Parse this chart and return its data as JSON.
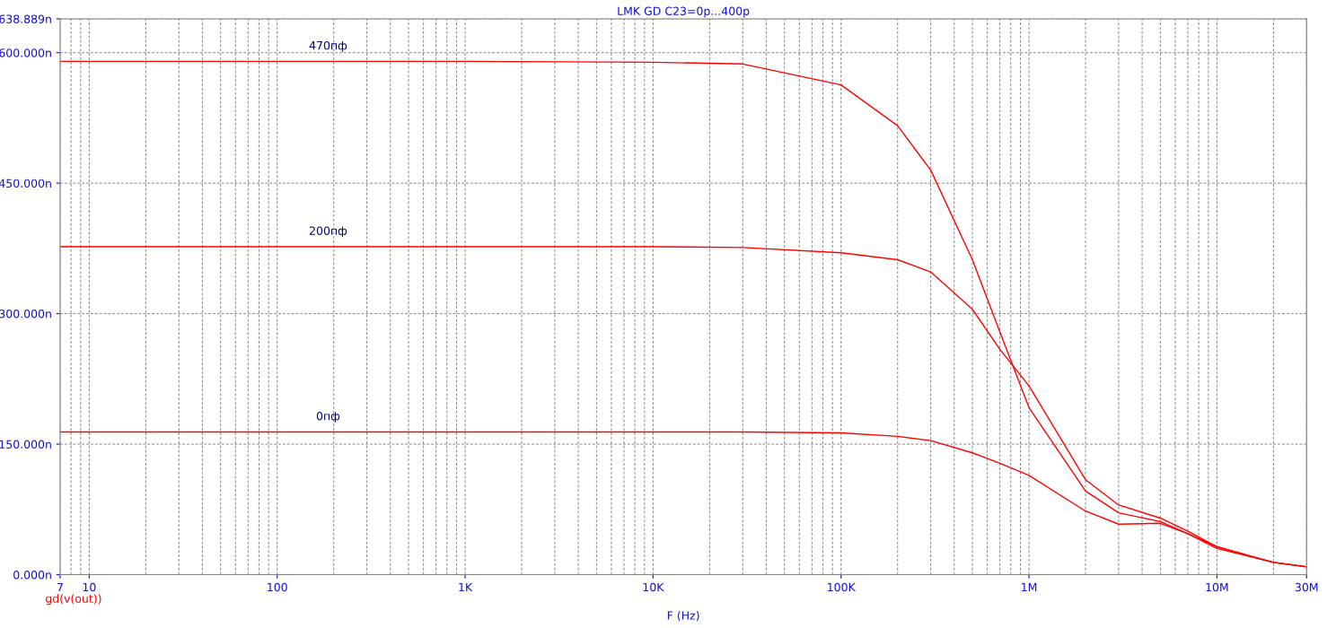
{
  "chart_data": {
    "type": "line",
    "title": "LMK GD C23=0p...400p",
    "xlabel": "F (Hz)",
    "ylabel": "gd(v(out))",
    "log": "x",
    "grid": true,
    "legend": false,
    "marker": "none",
    "line_style": "solid",
    "xlim": [
      7,
      30000000
    ],
    "xticks": [
      7,
      10,
      100,
      {
        "value": 1000,
        "label": "1K"
      },
      {
        "value": 10000,
        "label": "10K"
      },
      {
        "value": 100000,
        "label": "100K"
      },
      {
        "value": 1000000,
        "label": "1M"
      },
      {
        "value": 10000000,
        "label": "10M"
      },
      {
        "value": 30000000,
        "label": "30M"
      }
    ],
    "ylim": [
      0,
      638.889
    ],
    "yticks": [
      {
        "value": 0,
        "label": "0.000n"
      },
      {
        "value": 150,
        "label": "150.000n"
      },
      {
        "value": 300,
        "label": "300.000n"
      },
      {
        "value": 450,
        "label": "450.000n"
      },
      {
        "value": 600,
        "label": "600.000n"
      },
      {
        "value": 638.889,
        "label": "638.889n"
      }
    ],
    "x": [
      7,
      1000,
      10000,
      30000,
      100000,
      200000,
      300000,
      500000,
      700000,
      1000000,
      2000000,
      3000000,
      5000000,
      7000000,
      10000000,
      20000000,
      30000000
    ],
    "series": [
      {
        "name": "470пф",
        "color": "#ff0000",
        "values": [
          590,
          590,
          589,
          587,
          563,
          516,
          465,
          362,
          279,
          192,
          96,
          71,
          61,
          47,
          32,
          14,
          9
        ]
      },
      {
        "name": "200пф",
        "color": "#ff0000",
        "values": [
          377,
          377,
          377,
          376,
          370,
          362,
          348,
          305,
          259,
          217,
          109,
          80,
          65,
          50,
          32,
          14,
          9
        ]
      },
      {
        "name": "0пф",
        "color": "#ff0000",
        "values": [
          164,
          164,
          164,
          164,
          163,
          159,
          154,
          140,
          128,
          114,
          73,
          58,
          59,
          47,
          30,
          14,
          9
        ]
      }
    ]
  }
}
